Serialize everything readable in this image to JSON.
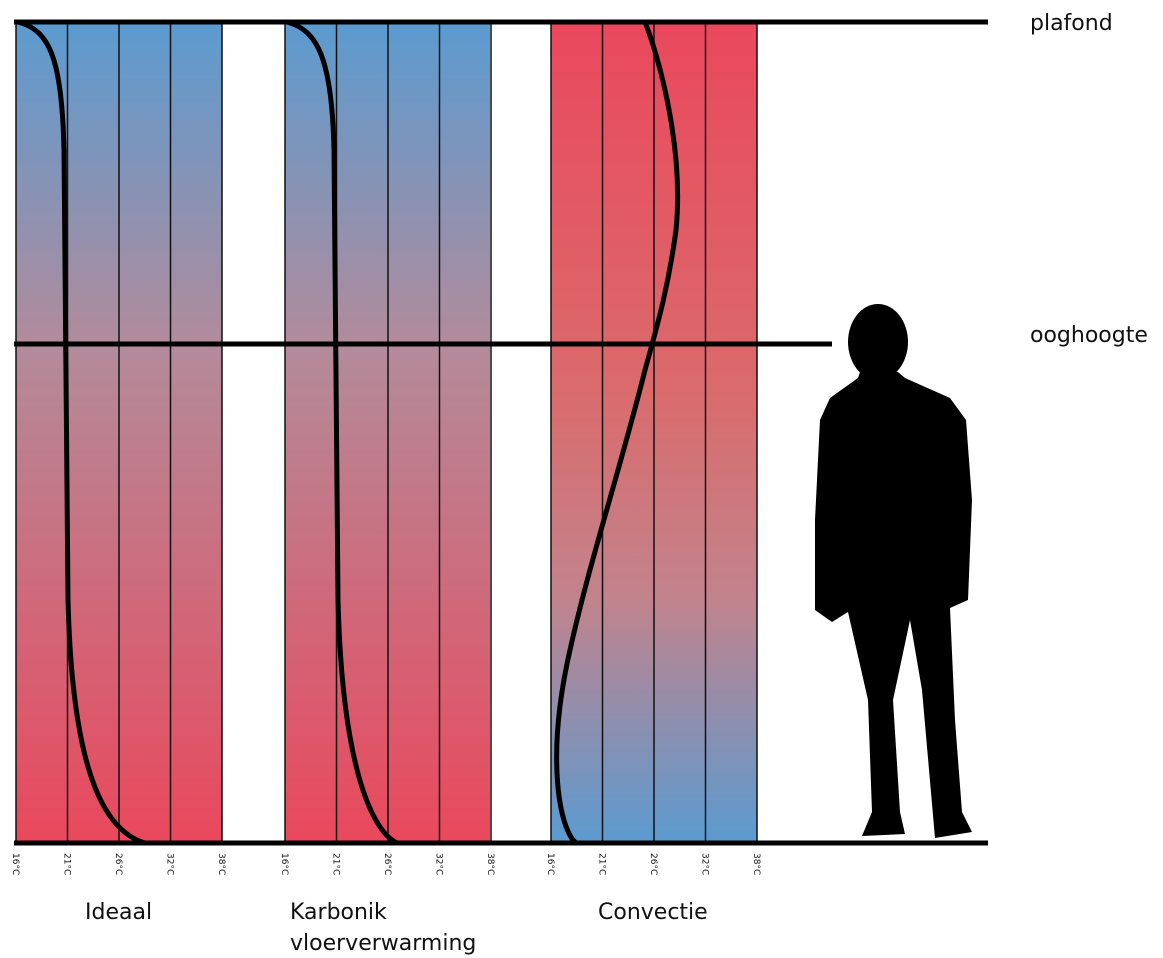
{
  "levels": {
    "ceiling": "plafond",
    "eye_height": "ooghoogte"
  },
  "panels": [
    {
      "label_lines": [
        "Ideaal"
      ],
      "ticks": [
        "16°C",
        "21°C",
        "26°C",
        "32°C",
        "38°C"
      ]
    },
    {
      "label_lines": [
        "Karbonik",
        "vloerverwarming"
      ],
      "ticks": [
        "16°C",
        "21°C",
        "26°C",
        "32°C",
        "38°C"
      ]
    },
    {
      "label_lines": [
        "Convectie"
      ],
      "ticks": [
        "16°C",
        "21°C",
        "26°C",
        "32°C",
        "38°C"
      ]
    }
  ]
}
